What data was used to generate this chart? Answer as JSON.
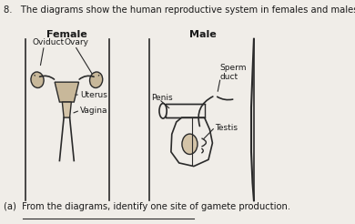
{
  "title_question": "8.   The diagrams show the human reproductive system in females and males.",
  "female_label": "Female",
  "male_label": "Male",
  "question_a": "(a)  From the diagrams, identify one site of gamete production.",
  "bg_color": "#f0ede8",
  "text_color": "#1a1a1a",
  "line_color": "#2a2a2a",
  "fig_width": 3.9,
  "fig_height": 2.46,
  "dpi": 100
}
